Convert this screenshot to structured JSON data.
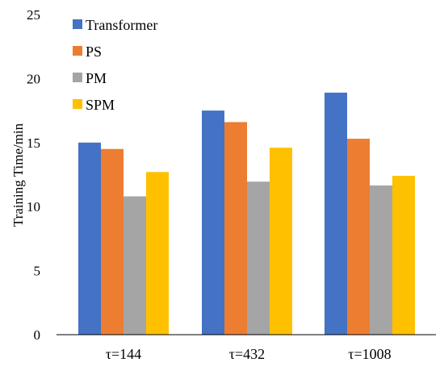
{
  "chart_data": {
    "type": "bar",
    "title": "",
    "xlabel": "",
    "ylabel": "Training Time/min",
    "ylim": [
      0,
      25
    ],
    "yticks": [
      0,
      5,
      10,
      15,
      20,
      25
    ],
    "grid": false,
    "legend_position": "top-left",
    "categories": [
      "τ=144",
      "τ=432",
      "τ=1008"
    ],
    "series": [
      {
        "name": "Transformer",
        "color": "#4472C4",
        "values": [
          15.0,
          17.5,
          18.9
        ]
      },
      {
        "name": "PS",
        "color": "#ED7D31",
        "values": [
          14.5,
          16.6,
          15.3
        ]
      },
      {
        "name": "PM",
        "color": "#A5A5A5",
        "values": [
          10.8,
          11.95,
          11.65
        ]
      },
      {
        "name": "SPM",
        "color": "#FFC000",
        "values": [
          12.7,
          14.6,
          12.4
        ]
      }
    ]
  }
}
